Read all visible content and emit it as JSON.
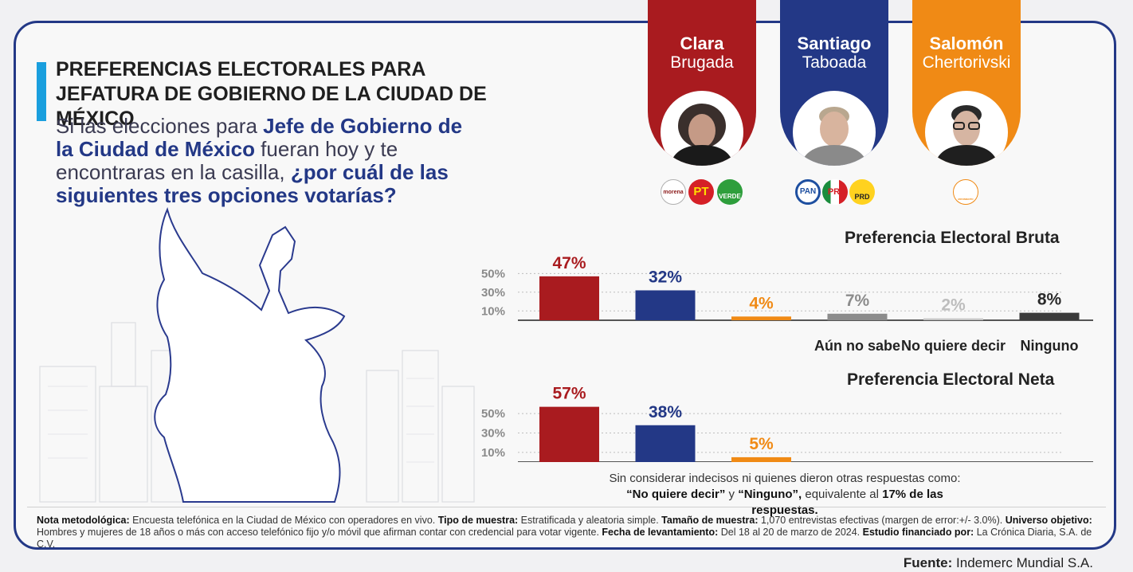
{
  "header": {
    "title_line1": "PREFERENCIAS ELECTORALES PARA",
    "title_line2": "JEFATURA DE GOBIERNO DE LA CIUDAD DE MÉXICO",
    "question": {
      "p1": "Si las elecciones para ",
      "p2": "Jefe de Gobierno de la Ciudad de México",
      "p3": " fueran hoy y te encontraras en la casilla, ",
      "p4": "¿por cuál de las siguientes tres opciones votarías?"
    }
  },
  "candidates": [
    {
      "first": "Clara",
      "last": "Brugada",
      "color": "#a91b1f",
      "parties": [
        "morena",
        "PT",
        "VERDE"
      ]
    },
    {
      "first": "Santiago",
      "last": "Taboada",
      "color": "#233886",
      "parties": [
        "PAN",
        "PRI",
        "PRD"
      ]
    },
    {
      "first": "Salomón",
      "last": "Chertorivski",
      "color": "#f08a15",
      "parties": [
        "MOVIMIENTO CIUDADANO"
      ]
    }
  ],
  "chart_data": [
    {
      "type": "bar",
      "title": "Preferencia Electoral Bruta",
      "categories": [
        "Clara Brugada",
        "Santiago Taboada",
        "Salomón Chertorivski",
        "Aún no sabe",
        "No quiere decir",
        "Ninguno"
      ],
      "x_labels": [
        "",
        "",
        "",
        "Aún no sabe",
        "No quiere decir",
        "Ninguno"
      ],
      "values": [
        47,
        32,
        4,
        7,
        2,
        8
      ],
      "value_labels": [
        "47%",
        "32%",
        "4%",
        "7%",
        "2%",
        "8%"
      ],
      "colors": [
        "#a91b1f",
        "#233886",
        "#f08a15",
        "#8c8c8c",
        "#c4c4c4",
        "#3a3a3a"
      ],
      "label_colors": [
        "#a91b1f",
        "#233886",
        "#f08a15",
        "#8c8c8c",
        "#bdbdbd",
        "#2a2a2a"
      ],
      "y_ticks": [
        10,
        30,
        50
      ],
      "y_tick_labels": [
        "10%",
        "30%",
        "50%"
      ],
      "ylim": [
        0,
        50
      ]
    },
    {
      "type": "bar",
      "title": "Preferencia Electoral Neta",
      "categories": [
        "Clara Brugada",
        "Santiago Taboada",
        "Salomón Chertorivski"
      ],
      "values": [
        57,
        38,
        5
      ],
      "value_labels": [
        "57%",
        "38%",
        "5%"
      ],
      "colors": [
        "#a91b1f",
        "#233886",
        "#f08a15"
      ],
      "label_colors": [
        "#a91b1f",
        "#233886",
        "#f08a15"
      ],
      "y_ticks": [
        10,
        30,
        50
      ],
      "y_tick_labels": [
        "10%",
        "30%",
        "50%"
      ],
      "ylim": [
        0,
        50
      ]
    }
  ],
  "neta_note": {
    "line1": "Sin considerar indecisos ni quienes dieron otras respuestas como:",
    "line2_bold1": "“No quiere decir”",
    "line2_mid": " y ",
    "line2_bold2": "“Ninguno”,",
    "line2_tail": " equivalente al ",
    "line2_bold3": "17% de las respuestas."
  },
  "methodology": [
    {
      "label": "Nota metodológica:",
      "text": " Encuesta telefónica en la Ciudad de México con operadores en vivo. "
    },
    {
      "label": "Tipo de muestra:",
      "text": " Estratificada y aleatoria simple. "
    },
    {
      "label": "Tamaño de muestra:",
      "text": " 1,070 entrevistas efectivas (margen de error:+/- 3.0%). "
    },
    {
      "label": "Universo objetivo:",
      "text": " Hombres y mujeres de 18 años o más con acceso telefónico fijo y/o móvil que afirman contar con credencial para votar vigente. "
    },
    {
      "label": "Fecha de levantamiento:",
      "text": " Del 18 al 20 de marzo de 2024. "
    },
    {
      "label": "Estudio financiado por:",
      "text": " La Crónica Diaria, S.A. de C.V."
    }
  ],
  "source": {
    "label": "Fuente:",
    "value": " Indemerc Mundial S.A."
  }
}
